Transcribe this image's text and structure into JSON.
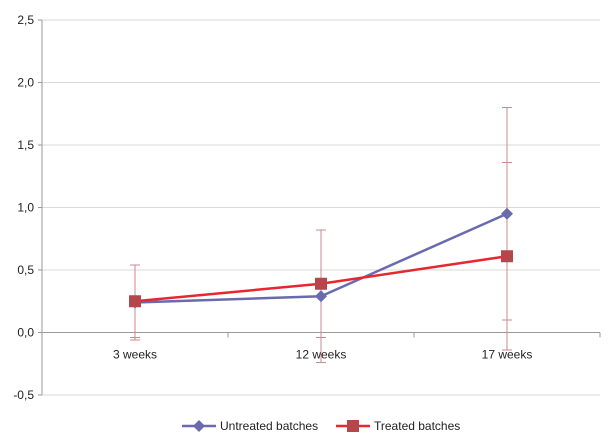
{
  "chart_data": {
    "type": "line",
    "categories": [
      "3 weeks",
      "12 weeks",
      "17 weeks"
    ],
    "ylim": [
      -0.5,
      2.5
    ],
    "yticks": [
      "-0,5",
      "0,0",
      "0,5",
      "1,0",
      "1,5",
      "2,0",
      "2,5"
    ],
    "ytick_values": [
      -0.5,
      0,
      0.5,
      1.0,
      1.5,
      2.0,
      2.5
    ],
    "grid": true,
    "legend_position": "bottom",
    "series": [
      {
        "name": "Untreated batches",
        "color": "#6a6aae",
        "marker": "diamond",
        "values": [
          0.24,
          0.29,
          0.95
        ],
        "error": [
          0.3,
          0.53,
          0.85
        ]
      },
      {
        "name": "Treated batches",
        "color": "#e8262f",
        "marker_color": "#b4464c",
        "marker": "square",
        "values": [
          0.25,
          0.39,
          0.61
        ],
        "error": [
          0.29,
          0.43,
          0.75
        ]
      }
    ]
  }
}
